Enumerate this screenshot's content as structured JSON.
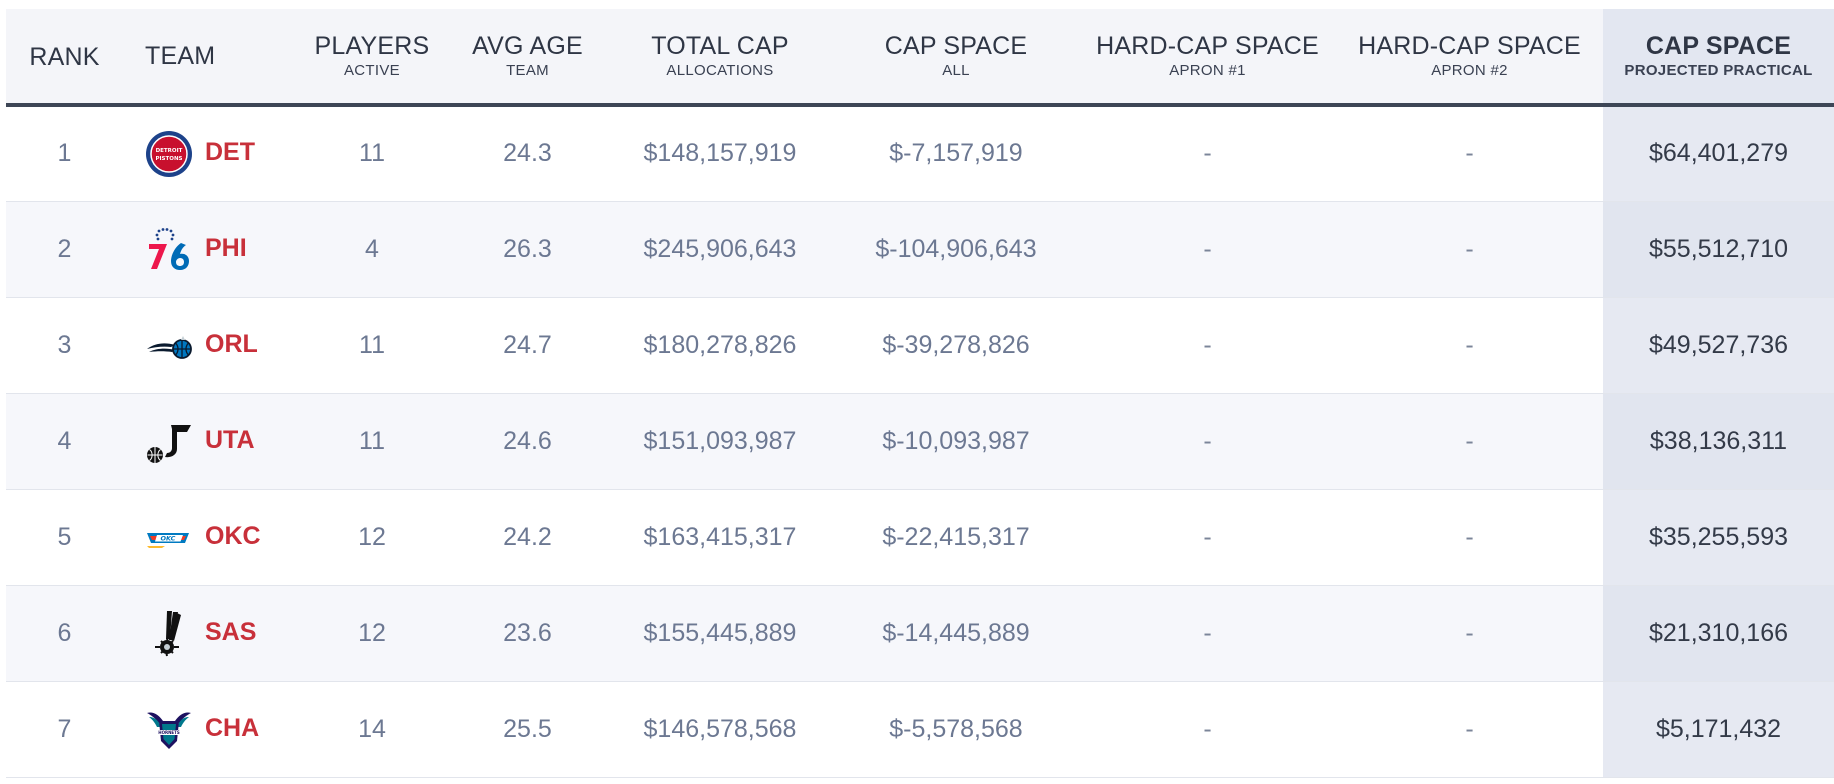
{
  "table": {
    "headers": {
      "rank": "RANK",
      "team": "TEAM",
      "players": {
        "main": "PLAYERS",
        "sub": "ACTIVE"
      },
      "avg_age": {
        "main": "AVG AGE",
        "sub": "TEAM"
      },
      "total_cap": {
        "main": "TOTAL CAP",
        "sub": "ALLOCATIONS"
      },
      "cap_space": {
        "main": "CAP SPACE",
        "sub": "ALL"
      },
      "hard_cap_1": {
        "main": "HARD-CAP SPACE",
        "sub": "APRON #1"
      },
      "hard_cap_2": {
        "main": "HARD-CAP SPACE",
        "sub": "APRON #2"
      },
      "projected": {
        "main": "CAP SPACE",
        "sub": "PROJECTED PRACTICAL"
      }
    },
    "rows": [
      {
        "rank": "1",
        "team": "DET",
        "logo": "pistons-logo",
        "players": "11",
        "avg_age": "24.3",
        "total_cap": "$148,157,919",
        "cap_space": "$-7,157,919",
        "hard_cap_1": "-",
        "hard_cap_2": "-",
        "projected": "$64,401,279"
      },
      {
        "rank": "2",
        "team": "PHI",
        "logo": "sixers-logo",
        "players": "4",
        "avg_age": "26.3",
        "total_cap": "$245,906,643",
        "cap_space": "$-104,906,643",
        "hard_cap_1": "-",
        "hard_cap_2": "-",
        "projected": "$55,512,710"
      },
      {
        "rank": "3",
        "team": "ORL",
        "logo": "magic-logo",
        "players": "11",
        "avg_age": "24.7",
        "total_cap": "$180,278,826",
        "cap_space": "$-39,278,826",
        "hard_cap_1": "-",
        "hard_cap_2": "-",
        "projected": "$49,527,736"
      },
      {
        "rank": "4",
        "team": "UTA",
        "logo": "jazz-logo",
        "players": "11",
        "avg_age": "24.6",
        "total_cap": "$151,093,987",
        "cap_space": "$-10,093,987",
        "hard_cap_1": "-",
        "hard_cap_2": "-",
        "projected": "$38,136,311"
      },
      {
        "rank": "5",
        "team": "OKC",
        "logo": "thunder-logo",
        "players": "12",
        "avg_age": "24.2",
        "total_cap": "$163,415,317",
        "cap_space": "$-22,415,317",
        "hard_cap_1": "-",
        "hard_cap_2": "-",
        "projected": "$35,255,593"
      },
      {
        "rank": "6",
        "team": "SAS",
        "logo": "spurs-logo",
        "players": "12",
        "avg_age": "23.6",
        "total_cap": "$155,445,889",
        "cap_space": "$-14,445,889",
        "hard_cap_1": "-",
        "hard_cap_2": "-",
        "projected": "$21,310,166"
      },
      {
        "rank": "7",
        "team": "CHA",
        "logo": "hornets-logo",
        "players": "14",
        "avg_age": "25.5",
        "total_cap": "$146,578,568",
        "cap_space": "$-5,578,568",
        "hard_cap_1": "-",
        "hard_cap_2": "-",
        "projected": "$5,171,432"
      }
    ],
    "colors": {
      "team_abbr": "#c8303a",
      "header_bg": "#f4f5f9",
      "header_rule": "#3d4656",
      "projected_bg": "#e6e9f2"
    },
    "logo_marks": {
      "pistons": "DETROIT PISTONS",
      "hornets": "HORNETS"
    }
  }
}
